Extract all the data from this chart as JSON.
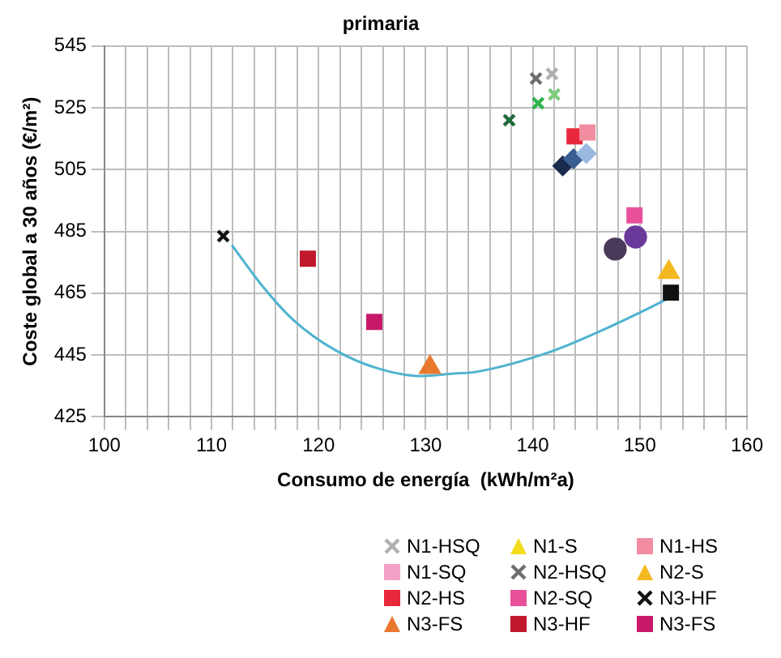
{
  "chart_data": {
    "type": "scatter",
    "title": "primaria",
    "xlabel": "Consumo de energía  (kWh/m²a)",
    "ylabel": "Coste global a 30 años (€/m²)",
    "xlim": [
      100,
      160
    ],
    "ylim": [
      425,
      545
    ],
    "xticks": [
      100,
      {
        "value": 102,
        "label": null
      },
      {
        "value": 104,
        "label": null
      },
      {
        "value": 106,
        "label": null
      },
      {
        "value": 108,
        "label": null
      },
      110,
      {
        "value": 112,
        "label": null
      },
      {
        "value": 114,
        "label": null
      },
      {
        "value": 116,
        "label": null
      },
      {
        "value": 118,
        "label": null
      },
      120,
      {
        "value": 122,
        "label": null
      },
      {
        "value": 124,
        "label": null
      },
      {
        "value": 126,
        "label": null
      },
      {
        "value": 128,
        "label": null
      },
      130,
      {
        "value": 132,
        "label": null
      },
      {
        "value": 134,
        "label": null
      },
      {
        "value": 136,
        "label": null
      },
      {
        "value": 138,
        "label": null
      },
      140,
      {
        "value": 142,
        "label": null
      },
      {
        "value": 144,
        "label": null
      },
      {
        "value": 146,
        "label": null
      },
      {
        "value": 148,
        "label": null
      },
      150,
      {
        "value": 152,
        "label": null
      },
      {
        "value": 154,
        "label": null
      },
      {
        "value": 156,
        "label": null
      },
      {
        "value": 158,
        "label": null
      },
      160
    ],
    "yticks": [
      425,
      445,
      465,
      485,
      505,
      525,
      545
    ],
    "grid": true,
    "legend": "bottom right",
    "series": [
      {
        "name": "N1-HSQ",
        "color": "#b0b0b0",
        "marker": "cross",
        "x": [
          141.8
        ],
        "values": [
          536
        ]
      },
      {
        "name": "N2-HSQ",
        "color": "#6e6e6e",
        "marker": "cross",
        "x": [
          140.3
        ],
        "values": [
          534.5
        ]
      },
      {
        "name": "N3-HF",
        "color": "#111111",
        "marker": "cross",
        "x": [
          111.1
        ],
        "values": [
          483.5
        ]
      },
      {
        "name": "N1-S",
        "color": "#f2dc1c",
        "marker": "triangle"
      },
      {
        "name": "N2-S",
        "color": "#f4b820",
        "marker": "triangle",
        "x": [
          152.7
        ],
        "values": [
          471.8
        ]
      },
      {
        "name": "N3-FS",
        "color": "#e8782e",
        "marker": "triangle",
        "x": [
          130.4
        ],
        "values": [
          441
        ]
      },
      {
        "name": "N1-HS",
        "color": "#f28ca0",
        "marker": "square",
        "x": [
          145.1
        ],
        "values": [
          517
        ]
      },
      {
        "name": "N2-HS",
        "color": "#e8283c",
        "marker": "square",
        "x": [
          143.9
        ],
        "values": [
          515.8
        ]
      },
      {
        "name": "N3-HF",
        "color": "#c0182c",
        "marker": "square",
        "x": [
          119
        ],
        "values": [
          476.2
        ]
      },
      {
        "name": "N1-SQ",
        "color": "#f4a0c4",
        "marker": "square"
      },
      {
        "name": "N2-SQ",
        "color": "#e8509a",
        "marker": "square",
        "x": [
          149.5
        ],
        "values": [
          490.2
        ]
      },
      {
        "name": "N3-FS",
        "color": "#c8186a",
        "marker": "square",
        "x": [
          125.2
        ],
        "values": [
          455.7
        ]
      },
      {
        "color": "#7ccc7c",
        "marker": "cross",
        "x": [
          142
        ],
        "values": [
          529.3
        ]
      },
      {
        "color": "#2db34a",
        "marker": "cross",
        "x": [
          140.5
        ],
        "values": [
          526.5
        ]
      },
      {
        "color": "#1d6b3a",
        "marker": "cross",
        "x": [
          137.8
        ],
        "values": [
          521
        ]
      },
      {
        "color": "#9ab8de",
        "marker": "diamond",
        "x": [
          145
        ],
        "values": [
          510.2
        ]
      },
      {
        "color": "#3a5e92",
        "marker": "diamond",
        "x": [
          143.8
        ],
        "values": [
          508.5
        ]
      },
      {
        "color": "#1a2c4e",
        "marker": "diamond",
        "x": [
          142.8
        ],
        "values": [
          506.2
        ]
      },
      {
        "color": "#6a3a9a",
        "marker": "circle",
        "x": [
          149.6
        ],
        "values": [
          483.2
        ]
      },
      {
        "color": "#4a3a5a",
        "marker": "circle",
        "x": [
          147.7
        ],
        "values": [
          479.3
        ]
      },
      {
        "color": "#111111",
        "marker": "square",
        "x": [
          152.9
        ],
        "values": [
          465.2
        ]
      },
      {
        "type": "line",
        "color": "#4fb3cf",
        "marker": "none",
        "x": [
          111.9,
          114.6,
          117.6,
          121.6,
          125.6,
          129.6,
          132.6,
          134.6,
          141.6,
          147.1,
          153.1
        ],
        "values": [
          480.6,
          468,
          456.5,
          446.5,
          440.6,
          438.2,
          439,
          439.5,
          446,
          454,
          464
        ]
      }
    ]
  }
}
